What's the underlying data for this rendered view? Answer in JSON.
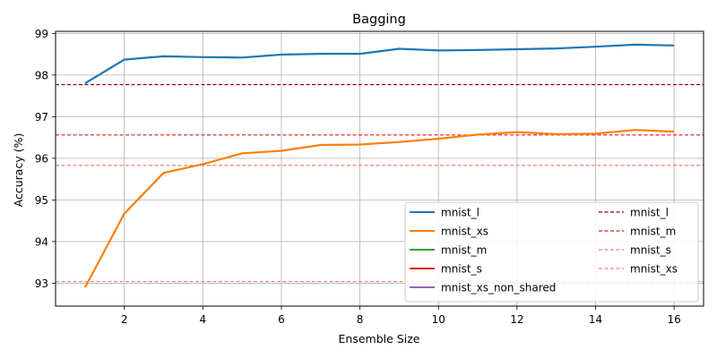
{
  "chart_data": {
    "type": "line",
    "title": "Bagging",
    "xlabel": "Ensemble Size",
    "ylabel": "Accuracy (%)",
    "xlim": [
      0.25,
      16.75
    ],
    "ylim": [
      92.45,
      99.05
    ],
    "xticks": [
      2,
      4,
      6,
      8,
      10,
      12,
      14,
      16
    ],
    "yticks": [
      93,
      94,
      95,
      96,
      97,
      98,
      99
    ],
    "grid": true,
    "legend_position": "lower-right",
    "legend_columns": 2,
    "series": [
      {
        "name": "mnist_l",
        "color": "#1f77b4",
        "style": "solid",
        "x": [
          1,
          2,
          3,
          4,
          5,
          6,
          7,
          8,
          9,
          10,
          11,
          12,
          13,
          14,
          15,
          16
        ],
        "y": [
          97.8,
          98.37,
          98.45,
          98.43,
          98.42,
          98.49,
          98.51,
          98.51,
          98.63,
          98.59,
          98.6,
          98.62,
          98.64,
          98.68,
          98.73,
          98.71
        ]
      },
      {
        "name": "mnist_xs",
        "color": "#ff7f0e",
        "style": "solid",
        "x": [
          1,
          2,
          3,
          4,
          5,
          6,
          7,
          8,
          9,
          10,
          11,
          12,
          13,
          14,
          15,
          16
        ],
        "y": [
          92.9,
          94.67,
          95.65,
          95.86,
          96.12,
          96.18,
          96.32,
          96.33,
          96.39,
          96.47,
          96.57,
          96.63,
          96.58,
          96.59,
          96.68,
          96.64
        ]
      },
      {
        "name": "mnist_m",
        "color": "#2ca02c",
        "style": "solid",
        "x": [],
        "y": []
      },
      {
        "name": "mnist_s",
        "color": "#d62728",
        "style": "solid",
        "x": [],
        "y": []
      },
      {
        "name": "mnist_xs_non_shared",
        "color": "#9467bd",
        "style": "solid",
        "x": [],
        "y": []
      }
    ],
    "reference_lines": [
      {
        "name": "mnist_l",
        "y": 97.77,
        "color": "#8b0000",
        "style": "dashed"
      },
      {
        "name": "mnist_m",
        "y": 96.56,
        "color": "#e31a1c",
        "style": "dashed"
      },
      {
        "name": "mnist_s",
        "y": 95.83,
        "color": "#f08070",
        "style": "dashed"
      },
      {
        "name": "mnist_xs",
        "y": 93.04,
        "color": "#f08070",
        "style": "dashed"
      }
    ]
  }
}
